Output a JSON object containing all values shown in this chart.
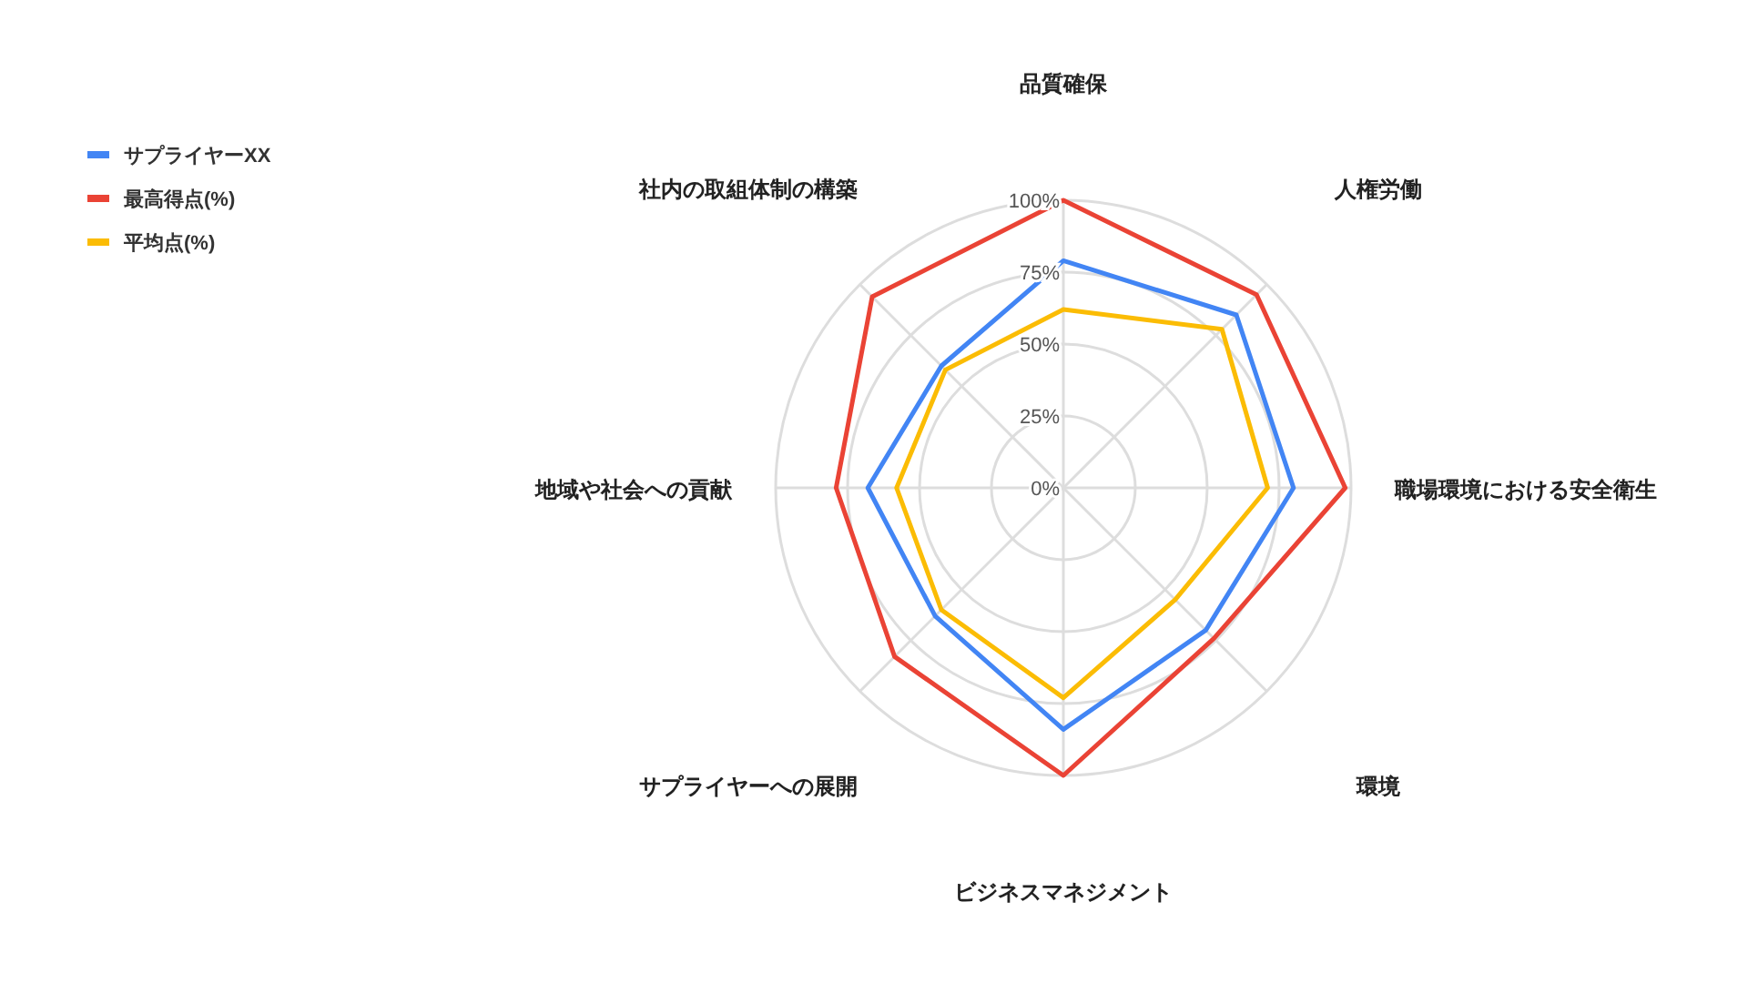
{
  "chart_data": {
    "type": "radar",
    "categories": [
      "品質確保",
      "人権労働",
      "職場環境における安全衛生",
      "環境",
      "ビジネスマネジメント",
      "サプライヤーへの展開",
      "地域や社会への貢献",
      "社内の取組体制の構築"
    ],
    "series": [
      {
        "name": "サプライヤーXX",
        "color": "#4285f4",
        "values": [
          79,
          85,
          80,
          70,
          84,
          63,
          68,
          60
        ]
      },
      {
        "name": "最高得点(%)",
        "color": "#ea4335",
        "values": [
          100,
          95,
          98,
          74,
          100,
          83,
          79,
          94
        ]
      },
      {
        "name": "平均点(%)",
        "color": "#fbbc04",
        "values": [
          62,
          78,
          71,
          55,
          73,
          60,
          58,
          58
        ]
      }
    ],
    "ylim": [
      0,
      100
    ],
    "yticks": [
      {
        "value": 0,
        "label": "0%"
      },
      {
        "value": 25,
        "label": "25%"
      },
      {
        "value": 50,
        "label": "50%"
      },
      {
        "value": 75,
        "label": "75%"
      },
      {
        "value": 100,
        "label": "100%"
      }
    ],
    "grid": true,
    "legend": "top left"
  }
}
